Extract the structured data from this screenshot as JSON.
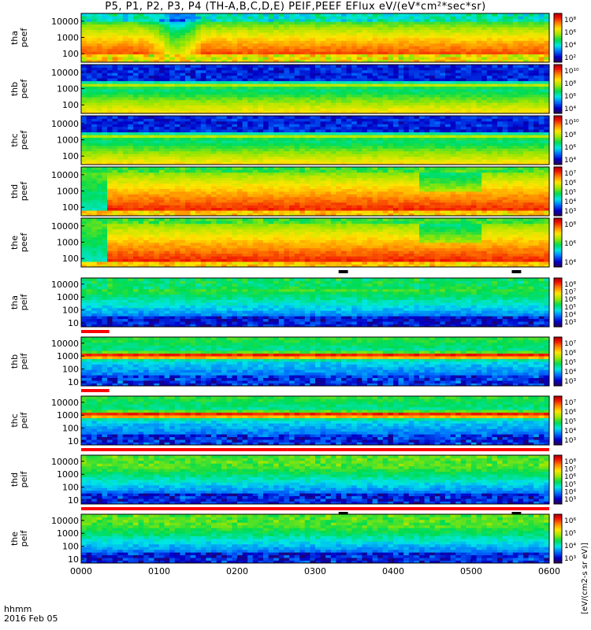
{
  "title": "P5, P1, P2, P3, P4 (TH-A,B,C,D,E) PEIF,PEEF EFlux eV/(eV*cm²*sec*sr)",
  "time_axis": {
    "ticks": [
      "0000",
      "0100",
      "0200",
      "0300",
      "0400",
      "0500",
      "0600"
    ],
    "label_row1": "hhmm",
    "label_row2": "2016 Feb 05"
  },
  "colorbar_label": "[eV/(cm2-s sr eV)]",
  "colors": {
    "background": "#ffffff",
    "status_red": "#ff0000",
    "status_black": "#000000",
    "frame": "#000000"
  },
  "chart_data": {
    "type": "heatmap",
    "x_unit": "hhmm",
    "x_range": [
      "0000",
      "0600"
    ],
    "y_scale": "log",
    "panels": [
      {
        "label": "tha\npeef",
        "y_ticks": [
          "10000",
          "1000",
          "100"
        ],
        "y_range": [
          30,
          30000
        ],
        "cb_ticks": [
          "10⁸",
          "10⁶",
          "10⁴",
          "10²"
        ],
        "cb_range": [
          1,
          1000000000.0
        ],
        "kind": "peef_a"
      },
      {
        "label": "thb\npeef",
        "y_ticks": [
          "10000",
          "1000",
          "100"
        ],
        "y_range": [
          30,
          30000
        ],
        "cb_ticks": [
          "10¹⁰",
          "10⁸",
          "10⁶",
          "10⁴"
        ],
        "cb_range": [
          1000.0,
          100000000000.0
        ],
        "kind": "peef_bc"
      },
      {
        "label": "thc\npeef",
        "y_ticks": [
          "10000",
          "1000",
          "100"
        ],
        "y_range": [
          30,
          30000
        ],
        "cb_ticks": [
          "10¹⁰",
          "10⁸",
          "10⁶",
          "10⁴"
        ],
        "cb_range": [
          1000.0,
          100000000000.0
        ],
        "kind": "peef_bc"
      },
      {
        "label": "thd\npeef",
        "y_ticks": [
          "10000",
          "1000",
          "100"
        ],
        "y_range": [
          30,
          30000
        ],
        "cb_ticks": [
          "10⁷",
          "10⁶",
          "10⁵",
          "10⁴",
          "10³"
        ],
        "cb_range": [
          300,
          30000000.0
        ],
        "kind": "peef_de"
      },
      {
        "label": "the\npeef",
        "y_ticks": [
          "10000",
          "1000",
          "100"
        ],
        "y_range": [
          30,
          30000
        ],
        "cb_ticks": [
          "10⁸",
          "10⁶",
          "10⁴"
        ],
        "cb_range": [
          1000.0,
          300000000.0
        ],
        "kind": "peef_de"
      },
      {
        "label": "tha\npeif",
        "y_ticks": [
          "10000",
          "1000",
          "100",
          "10"
        ],
        "y_range": [
          5,
          30000
        ],
        "cb_ticks": [
          "10⁸",
          "10⁷",
          "10⁶",
          "10⁵",
          "10⁴",
          "10³"
        ],
        "cb_range": [
          300,
          300000000.0
        ],
        "kind": "peif_a"
      },
      {
        "label": "thb\npeif",
        "y_ticks": [
          "10000",
          "1000",
          "100",
          "10"
        ],
        "y_range": [
          5,
          30000
        ],
        "cb_ticks": [
          "10⁷",
          "10⁶",
          "10⁵",
          "10⁴",
          "10³"
        ],
        "cb_range": [
          300,
          30000000.0
        ],
        "kind": "peif_bc"
      },
      {
        "label": "thc\npeif",
        "y_ticks": [
          "10000",
          "1000",
          "100",
          "10"
        ],
        "y_range": [
          5,
          30000
        ],
        "cb_ticks": [
          "10⁷",
          "10⁶",
          "10⁵",
          "10⁴",
          "10³"
        ],
        "cb_range": [
          300,
          30000000.0
        ],
        "kind": "peif_bc"
      },
      {
        "label": "thd\npeif",
        "y_ticks": [
          "10000",
          "1000",
          "100",
          "10"
        ],
        "y_range": [
          5,
          30000
        ],
        "cb_ticks": [
          "10⁸",
          "10⁷",
          "10⁶",
          "10⁵",
          "10⁴",
          "10³"
        ],
        "cb_range": [
          300,
          300000000.0
        ],
        "kind": "peif_de"
      },
      {
        "label": "the\npeif",
        "y_ticks": [
          "10000",
          "1000",
          "100",
          "10"
        ],
        "y_range": [
          5,
          30000
        ],
        "cb_ticks": [
          "10⁶",
          "10⁵",
          "10⁴",
          "10³"
        ],
        "cb_range": [
          300,
          3000000.0
        ],
        "kind": "peif_de"
      }
    ]
  }
}
